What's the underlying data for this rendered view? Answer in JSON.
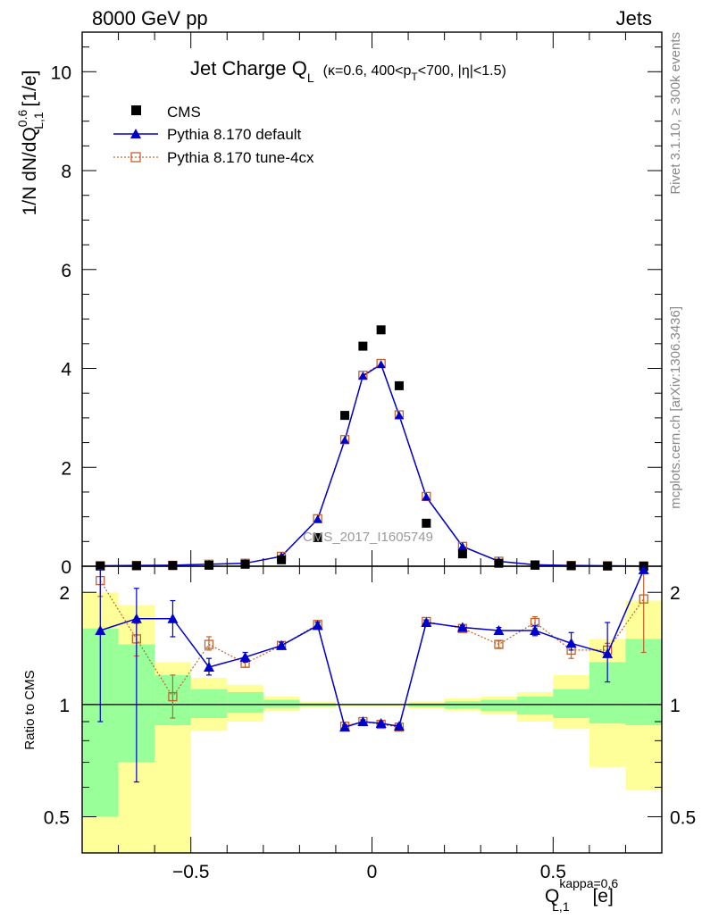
{
  "header": {
    "left": "8000 GeV pp",
    "right": "Jets"
  },
  "side": {
    "rivet": "Rivet 3.1.10, ≥ 300k events",
    "mcplots": "mcplots.cern.ch [arXiv:1306.3436]"
  },
  "title": {
    "main": "Jet Charge Q",
    "main_sub": "L",
    "cut_a": "(κ=0.6, 400<p",
    "cut_sub": "T",
    "cut_b": "<700, |η|<1.5)"
  },
  "watermark": "CMS_2017_I1605749",
  "ylabel_main": {
    "pre": "1/N dN/dQ",
    "sup": "0.6",
    "sub": "L,1",
    "post": " [1/e]"
  },
  "ylabel_ratio": "Ratio to CMS",
  "xlabel": {
    "pre": "Q",
    "sup": "kappa=0.6",
    "sub": "L,1",
    "post": " [e]"
  },
  "legend": {
    "cms": "CMS",
    "default": "Pythia 8.170 default",
    "tune": "Pythia 8.170 tune-4cx"
  },
  "colors": {
    "data": "#000000",
    "default": "#0000cc",
    "tune": "#c0622b",
    "band_inner": "#99ff99",
    "band_outer": "#ffff99"
  },
  "chart_data": [
    {
      "type": "scatter",
      "panel": "main",
      "xlim": [
        -0.8,
        0.8
      ],
      "ylim": [
        0,
        10.8
      ],
      "yticks": [
        0,
        2,
        4,
        6,
        8,
        10
      ],
      "ytick_labels": [
        "0",
        "2",
        "4",
        "6",
        "8",
        "10"
      ],
      "legend_position": "top-left",
      "series": [
        {
          "name": "CMS",
          "x": [
            -0.75,
            -0.65,
            -0.55,
            -0.45,
            -0.35,
            -0.25,
            -0.15,
            -0.075,
            -0.025,
            0.025,
            0.075,
            0.15,
            0.25,
            0.35,
            0.45,
            0.55,
            0.65,
            0.75
          ],
          "y": [
            0.005,
            0.01,
            0.015,
            0.02,
            0.04,
            0.13,
            0.58,
            3.05,
            4.45,
            4.78,
            3.65,
            0.87,
            0.25,
            0.06,
            0.02,
            0.01,
            0.005,
            0.003
          ]
        },
        {
          "name": "Pythia 8.170 default",
          "x": [
            -0.75,
            -0.65,
            -0.55,
            -0.45,
            -0.35,
            -0.25,
            -0.15,
            -0.075,
            -0.025,
            0.025,
            0.075,
            0.15,
            0.25,
            0.35,
            0.45,
            0.55,
            0.65,
            0.75
          ],
          "y": [
            0.008,
            0.015,
            0.02,
            0.04,
            0.06,
            0.2,
            0.95,
            2.55,
            3.85,
            4.08,
            3.05,
            1.4,
            0.4,
            0.1,
            0.03,
            0.015,
            0.008,
            0.005
          ]
        },
        {
          "name": "Pythia 8.170 tune-4cx",
          "x": [
            -0.75,
            -0.65,
            -0.55,
            -0.45,
            -0.35,
            -0.25,
            -0.15,
            -0.075,
            -0.025,
            0.025,
            0.075,
            0.15,
            0.25,
            0.35,
            0.45,
            0.55,
            0.65,
            0.75
          ],
          "y": [
            0.01,
            0.015,
            0.018,
            0.04,
            0.06,
            0.2,
            0.96,
            2.56,
            3.86,
            4.1,
            3.06,
            1.41,
            0.4,
            0.1,
            0.03,
            0.015,
            0.008,
            0.005
          ]
        }
      ]
    },
    {
      "type": "scatter",
      "panel": "ratio",
      "xlim": [
        -0.8,
        0.8
      ],
      "ylim": [
        0.4,
        2.35
      ],
      "yscale": "log",
      "yticks": [
        0.5,
        1,
        2
      ],
      "ytick_labels": [
        "0.5",
        "1",
        "2"
      ],
      "xticks": [
        -0.5,
        0,
        0.5
      ],
      "xtick_labels": [
        "−0.5",
        "0",
        "0.5"
      ],
      "bins": [
        [
          -0.8,
          -0.7
        ],
        [
          -0.7,
          -0.6
        ],
        [
          -0.6,
          -0.5
        ],
        [
          -0.5,
          -0.4
        ],
        [
          -0.4,
          -0.3
        ],
        [
          -0.3,
          -0.2
        ],
        [
          -0.2,
          -0.1
        ],
        [
          -0.1,
          -0.05
        ],
        [
          -0.05,
          0.0
        ],
        [
          0.0,
          0.05
        ],
        [
          0.05,
          0.1
        ],
        [
          0.1,
          0.2
        ],
        [
          0.2,
          0.3
        ],
        [
          0.3,
          0.4
        ],
        [
          0.4,
          0.5
        ],
        [
          0.5,
          0.6
        ],
        [
          0.6,
          0.7
        ],
        [
          0.7,
          0.8
        ]
      ],
      "band_inner": {
        "lo": [
          0.5,
          0.7,
          0.88,
          0.92,
          0.95,
          0.98,
          0.99,
          0.995,
          0.995,
          0.995,
          0.995,
          0.985,
          0.975,
          0.96,
          0.94,
          0.92,
          0.89,
          0.88
        ],
        "hi": [
          1.6,
          1.45,
          1.2,
          1.1,
          1.08,
          1.03,
          1.01,
          1.005,
          1.005,
          1.005,
          1.005,
          1.01,
          1.02,
          1.03,
          1.05,
          1.1,
          1.3,
          1.5
        ]
      },
      "band_outer": {
        "lo": [
          0.35,
          0.35,
          0.35,
          0.85,
          0.9,
          0.96,
          0.98,
          0.99,
          0.99,
          0.99,
          0.99,
          0.975,
          0.96,
          0.94,
          0.9,
          0.86,
          0.68,
          0.59
        ]
      },
      "band_outer_hi": [
        2.0,
        1.85,
        1.3,
        1.18,
        1.13,
        1.05,
        1.02,
        1.01,
        1.01,
        1.01,
        1.01,
        1.02,
        1.04,
        1.05,
        1.08,
        1.2,
        1.5,
        1.9
      ],
      "series": [
        {
          "name": "Pythia 8.170 default",
          "x": [
            -0.75,
            -0.65,
            -0.55,
            -0.45,
            -0.35,
            -0.25,
            -0.15,
            -0.075,
            -0.025,
            0.025,
            0.075,
            0.15,
            0.25,
            0.35,
            0.45,
            0.55,
            0.65,
            0.75
          ],
          "y": [
            1.58,
            1.7,
            1.7,
            1.26,
            1.34,
            1.44,
            1.63,
            0.87,
            0.9,
            0.89,
            0.875,
            1.66,
            1.61,
            1.58,
            1.58,
            1.46,
            1.37,
            2.3
          ],
          "err_lo": [
            0.9,
            0.62,
            1.52,
            1.2,
            1.3,
            1.41,
            1.6,
            0.86,
            0.89,
            0.88,
            0.865,
            1.64,
            1.59,
            1.55,
            1.53,
            1.4,
            1.15,
            2.3
          ],
          "err_hi": [
            2.3,
            2.05,
            1.9,
            1.33,
            1.38,
            1.47,
            1.66,
            0.88,
            0.91,
            0.9,
            0.885,
            1.68,
            1.63,
            1.61,
            1.63,
            1.56,
            1.66,
            2.3
          ]
        },
        {
          "name": "Pythia 8.170 tune-4cx",
          "x": [
            -0.75,
            -0.65,
            -0.55,
            -0.45,
            -0.35,
            -0.25,
            -0.15,
            -0.075,
            -0.025,
            0.025,
            0.075,
            0.15,
            0.25,
            0.35,
            0.45,
            0.55,
            0.65,
            0.75
          ],
          "y": [
            2.15,
            1.5,
            1.05,
            1.45,
            1.29,
            1.44,
            1.64,
            0.875,
            0.9,
            0.885,
            0.87,
            1.67,
            1.6,
            1.45,
            1.66,
            1.4,
            1.4,
            1.92
          ],
          "err_lo": [
            1.95,
            1.35,
            0.92,
            1.4,
            1.26,
            1.42,
            1.62,
            0.86,
            0.89,
            0.875,
            0.86,
            1.65,
            1.58,
            1.42,
            1.6,
            1.33,
            1.34,
            1.38
          ],
          "err_hi": [
            2.3,
            1.65,
            1.2,
            1.52,
            1.33,
            1.47,
            1.67,
            0.885,
            0.91,
            0.895,
            0.88,
            1.69,
            1.63,
            1.48,
            1.72,
            1.47,
            1.46,
            2.3
          ]
        }
      ]
    }
  ]
}
